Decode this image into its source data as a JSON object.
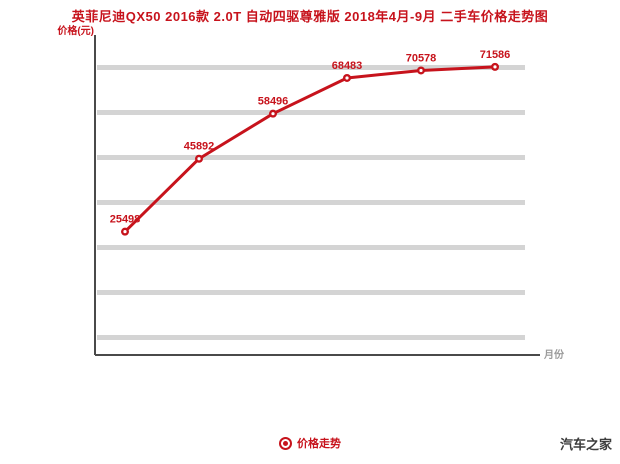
{
  "watermark": "汽车之家",
  "chart_data": {
    "type": "line",
    "title": "英菲尼迪QX50 2016款 2.0T 自动四驱尊雅版 2018年4月-9月 二手车价格走势图",
    "ylabel": "价格(元)",
    "xlabel": "月份",
    "legend": {
      "label": "价格走势"
    },
    "series": [
      {
        "name": "价格走势",
        "values": [
          25498,
          45892,
          58496,
          68483,
          70578,
          71586
        ]
      }
    ],
    "point_labels": [
      "25498",
      "45892",
      "58496",
      "68483",
      "70578",
      "71586"
    ],
    "ylim": [
      -9000,
      80500
    ],
    "grid": "horizontal-bands",
    "gridline_count": 7,
    "legend_position": "bottom-center",
    "colors": {
      "line": "#c7131c",
      "point_label": "#c7131c",
      "grid": "#d4d4d4",
      "axis": "#4a4a4a",
      "title": "#c7131c",
      "x_label": "#9a9a9a",
      "watermark": "#3c3c3c"
    }
  }
}
